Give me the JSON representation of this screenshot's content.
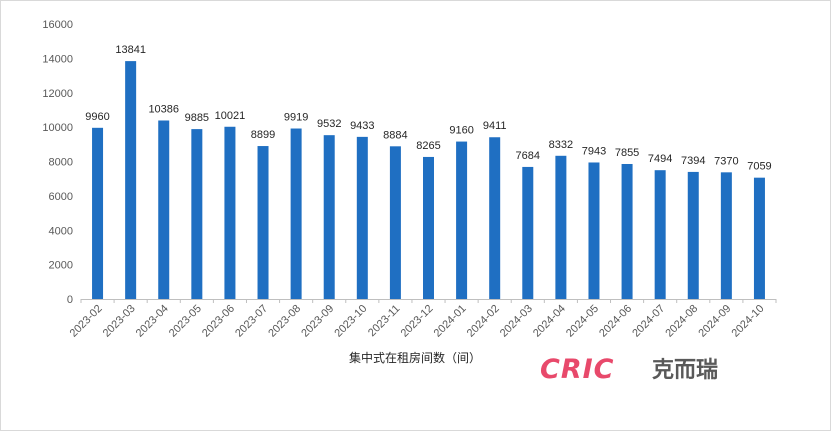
{
  "chart_data": {
    "type": "bar",
    "xlabel": "集中式在租房间数（间）",
    "ylim": [
      0,
      16000
    ],
    "yticks": [
      0,
      2000,
      4000,
      6000,
      8000,
      10000,
      12000,
      14000,
      16000
    ],
    "categories": [
      "2023-02",
      "2023-03",
      "2023-04",
      "2023-05",
      "2023-06",
      "2023-07",
      "2023-08",
      "2023-09",
      "2023-10",
      "2023-11",
      "2023-12",
      "2024-01",
      "2024-02",
      "2024-03",
      "2024-04",
      "2024-05",
      "2024-06",
      "2024-07",
      "2024-08",
      "2024-09",
      "2024-10"
    ],
    "values": [
      9960,
      13841,
      10386,
      9885,
      10021,
      8899,
      9919,
      9532,
      9433,
      8884,
      8265,
      9160,
      9411,
      7684,
      8332,
      7943,
      7855,
      7494,
      7394,
      7370,
      7059
    ],
    "bar_color": "#1f6fc2",
    "grid": false
  }
}
